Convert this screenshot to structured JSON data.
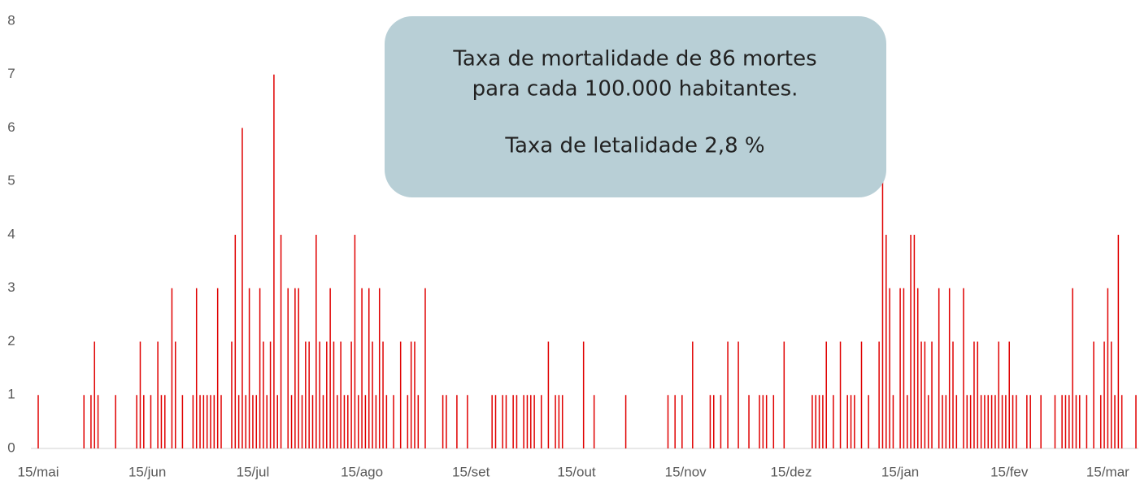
{
  "chart_data": {
    "type": "bar",
    "annotation": [
      "Taxa de mortalidade de 86 mortes",
      "para cada 100.000 habitantes.",
      "Taxa de letalidade 2,8 %"
    ],
    "categories": [
      "15/mai",
      null,
      null,
      null,
      null,
      null,
      null,
      null,
      null,
      null,
      null,
      null,
      null,
      null,
      null,
      null,
      null,
      null,
      null,
      null,
      null,
      null,
      null,
      null,
      null,
      null,
      null,
      null,
      null,
      null,
      null,
      "15/jun",
      null,
      null,
      null,
      null,
      null,
      null,
      null,
      null,
      null,
      null,
      null,
      null,
      null,
      null,
      null,
      null,
      null,
      null,
      null,
      null,
      null,
      null,
      null,
      null,
      null,
      null,
      null,
      null,
      null,
      "15/jul",
      null,
      null,
      null,
      null,
      null,
      null,
      null,
      null,
      null,
      null,
      null,
      null,
      null,
      null,
      null,
      null,
      null,
      null,
      null,
      null,
      null,
      null,
      null,
      null,
      null,
      null,
      null,
      null,
      null,
      null,
      "15/ago",
      null,
      null,
      null,
      null,
      null,
      null,
      null,
      null,
      null,
      null,
      null,
      null,
      null,
      null,
      null,
      null,
      null,
      null,
      null,
      null,
      null,
      null,
      null,
      null,
      null,
      null,
      null,
      null,
      null,
      null,
      "15/set",
      null,
      null,
      null,
      null,
      null,
      null,
      null,
      null,
      null,
      null,
      null,
      null,
      null,
      null,
      null,
      null,
      null,
      null,
      null,
      null,
      null,
      null,
      null,
      null,
      null,
      null,
      null,
      null,
      null,
      "15/out",
      null,
      null,
      null,
      null,
      null,
      null,
      null,
      null,
      null,
      null,
      null,
      null,
      null,
      null,
      null,
      null,
      null,
      null,
      null,
      null,
      null,
      null,
      null,
      null,
      null,
      null,
      null,
      null,
      null,
      null,
      "15/nov",
      null,
      null,
      null,
      null,
      null,
      null,
      null,
      null,
      null,
      null,
      null,
      null,
      null,
      null,
      null,
      null,
      null,
      null,
      null,
      null,
      null,
      null,
      null,
      null,
      null,
      null,
      null,
      null,
      null,
      "15/dez",
      null,
      null,
      null,
      null,
      null,
      null,
      null,
      null,
      null,
      null,
      null,
      null,
      null,
      null,
      null,
      null,
      null,
      null,
      null,
      null,
      null,
      null,
      null,
      null,
      null,
      null,
      null,
      null,
      null,
      null,
      "15/jan",
      null,
      null,
      null,
      null,
      null,
      null,
      null,
      null,
      null,
      null,
      null,
      null,
      null,
      null,
      null,
      null,
      null,
      null,
      null,
      null,
      null,
      null,
      null,
      null,
      null,
      null,
      null,
      null,
      null,
      null,
      "15/fev",
      null,
      null,
      null,
      null,
      null,
      null,
      null,
      null,
      null,
      null,
      null,
      null,
      null,
      null,
      null,
      null,
      null,
      null,
      null,
      null,
      null,
      null,
      null,
      null,
      null,
      null,
      null,
      "15/mar",
      null,
      null,
      null,
      null,
      null,
      null,
      null,
      null
    ],
    "values": [
      1,
      0,
      0,
      0,
      0,
      0,
      0,
      0,
      0,
      0,
      0,
      0,
      0,
      1,
      0,
      1,
      2,
      1,
      0,
      0,
      0,
      0,
      1,
      0,
      0,
      0,
      0,
      0,
      1,
      2,
      1,
      0,
      1,
      0,
      2,
      1,
      1,
      0,
      3,
      2,
      0,
      1,
      0,
      0,
      1,
      3,
      1,
      1,
      1,
      1,
      1,
      3,
      1,
      0,
      0,
      2,
      4,
      1,
      6,
      1,
      3,
      1,
      1,
      3,
      2,
      1,
      2,
      7,
      1,
      4,
      0,
      3,
      1,
      3,
      3,
      1,
      2,
      2,
      1,
      4,
      2,
      1,
      2,
      3,
      2,
      1,
      2,
      1,
      1,
      2,
      4,
      1,
      3,
      1,
      3,
      2,
      1,
      3,
      2,
      1,
      0,
      1,
      0,
      2,
      0,
      1,
      2,
      2,
      1,
      0,
      3,
      0,
      0,
      0,
      0,
      1,
      1,
      0,
      0,
      1,
      0,
      0,
      1,
      0,
      0,
      0,
      0,
      0,
      0,
      1,
      1,
      0,
      1,
      1,
      0,
      1,
      1,
      0,
      1,
      1,
      1,
      1,
      0,
      1,
      0,
      2,
      0,
      1,
      1,
      1,
      0,
      0,
      0,
      0,
      0,
      2,
      0,
      0,
      1,
      0,
      0,
      0,
      0,
      0,
      0,
      0,
      0,
      1,
      0,
      0,
      0,
      0,
      0,
      0,
      0,
      0,
      0,
      0,
      0,
      1,
      0,
      1,
      0,
      1,
      0,
      0,
      2,
      0,
      0,
      0,
      0,
      1,
      1,
      0,
      1,
      0,
      2,
      0,
      0,
      2,
      0,
      0,
      1,
      0,
      0,
      1,
      1,
      1,
      0,
      1,
      0,
      0,
      2,
      0,
      0,
      0,
      0,
      0,
      0,
      0,
      1,
      1,
      1,
      1,
      2,
      0,
      1,
      0,
      2,
      0,
      1,
      1,
      1,
      0,
      2,
      0,
      1,
      0,
      0,
      2,
      5,
      4,
      3,
      1,
      0,
      3,
      3,
      1,
      4,
      4,
      3,
      2,
      2,
      1,
      2,
      0,
      3,
      1,
      1,
      3,
      2,
      1,
      0,
      3,
      1,
      1,
      2,
      2,
      1,
      1,
      1,
      1,
      1,
      2,
      1,
      1,
      2,
      1,
      1,
      0,
      0,
      1,
      1,
      0,
      0,
      1,
      0,
      0,
      0,
      1,
      0,
      1,
      1,
      1,
      3,
      1,
      1,
      0,
      1,
      0,
      2,
      0,
      1,
      2,
      3,
      2,
      1,
      4,
      1,
      0,
      0,
      0,
      1
    ],
    "color": "#e00000",
    "ylim": [
      0,
      8
    ],
    "yticks": [
      0,
      1,
      2,
      3,
      4,
      5,
      6,
      7,
      8
    ],
    "grid": false
  }
}
